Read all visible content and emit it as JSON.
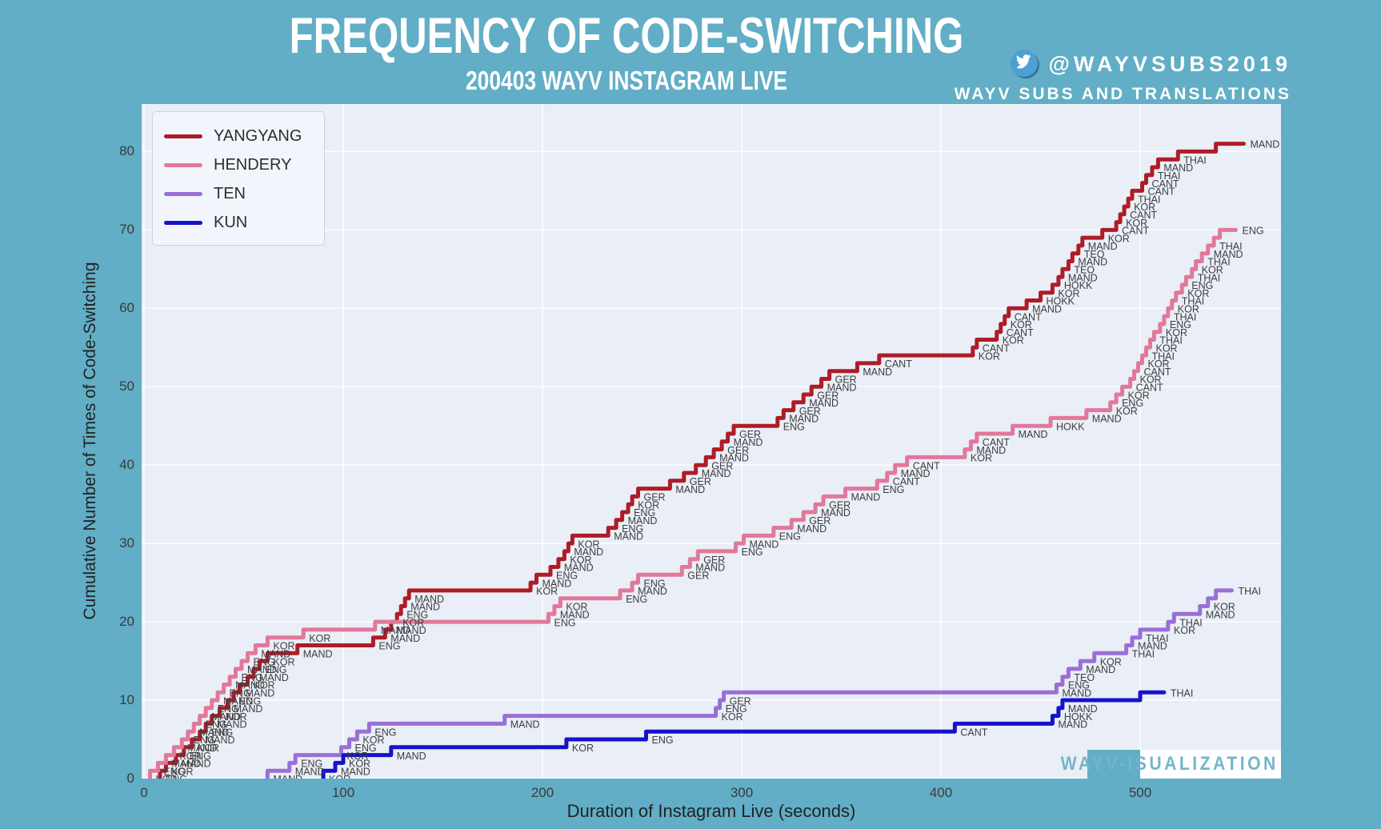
{
  "header": {
    "title": "FREQUENCY OF CODE-SWITCHING",
    "subtitle": "200403 WAYV INSTAGRAM LIVE",
    "twitter_handle": "@WAYVSUBS2019",
    "credit_line": "WAYV SUBS AND TRANSLATIONS"
  },
  "watermark": {
    "text": "WAYV-ISUALIZATION"
  },
  "axes": {
    "x_title": "Duration of Instagram Live (seconds)",
    "y_title": "Cumulative Number of Times of Code-Switching",
    "x_ticks": [
      0,
      100,
      200,
      300,
      400,
      500
    ],
    "y_ticks": [
      0,
      10,
      20,
      30,
      40,
      50,
      60,
      70,
      80
    ]
  },
  "colors": {
    "page_background": "#61aec6",
    "plot_background": "#e9eef7",
    "gridline": "#ffffff",
    "step_label_text": "#3d3d3d",
    "watermark_text": "#74b5ca"
  },
  "chart_data": {
    "type": "line",
    "subtype": "cumulative-step",
    "title": "Frequency of Code-Switching",
    "xlabel": "Duration of Instagram Live (seconds)",
    "ylabel": "Cumulative Number of Times of Code-Switching",
    "xlim": [
      0,
      570
    ],
    "ylim": [
      0,
      86
    ],
    "grid": true,
    "legend_position": "upper-left",
    "note": "Each event is [time_seconds, language_switched_to]; cumulative count after event i equals i+1",
    "series": [
      {
        "name": "YANGYANG",
        "color": "#ae1c27",
        "end_t": 552,
        "events": [
          [
            8,
            "ENG"
          ],
          [
            11,
            "KOR"
          ],
          [
            16,
            "MAND"
          ],
          [
            20,
            "ENG"
          ],
          [
            24,
            "KOR"
          ],
          [
            28,
            "MAND"
          ],
          [
            31,
            "ENG"
          ],
          [
            34,
            "MAND"
          ],
          [
            38,
            "KOR"
          ],
          [
            42,
            "MAND"
          ],
          [
            45,
            "ENG"
          ],
          [
            48,
            "MAND"
          ],
          [
            52,
            "KOR"
          ],
          [
            55,
            "MAND"
          ],
          [
            58,
            "ENG"
          ],
          [
            62,
            "KOR"
          ],
          [
            77,
            "MAND"
          ],
          [
            115,
            "ENG"
          ],
          [
            121,
            "MAND"
          ],
          [
            124,
            "MAND"
          ],
          [
            127,
            "KOR"
          ],
          [
            129,
            "ENG"
          ],
          [
            131,
            "MAND"
          ],
          [
            133,
            "MAND"
          ],
          [
            194,
            "KOR"
          ],
          [
            197,
            "MAND"
          ],
          [
            204,
            "ENG"
          ],
          [
            208,
            "MAND"
          ],
          [
            211,
            "KOR"
          ],
          [
            213,
            "MAND"
          ],
          [
            215,
            "KOR"
          ],
          [
            233,
            "MAND"
          ],
          [
            237,
            "ENG"
          ],
          [
            240,
            "MAND"
          ],
          [
            243,
            "ENG"
          ],
          [
            245,
            "KOR"
          ],
          [
            248,
            "GER"
          ],
          [
            264,
            "MAND"
          ],
          [
            271,
            "GER"
          ],
          [
            277,
            "MAND"
          ],
          [
            282,
            "GER"
          ],
          [
            286,
            "MAND"
          ],
          [
            290,
            "GER"
          ],
          [
            293,
            "MAND"
          ],
          [
            296,
            "GER"
          ],
          [
            318,
            "ENG"
          ],
          [
            321,
            "MAND"
          ],
          [
            326,
            "GER"
          ],
          [
            331,
            "MAND"
          ],
          [
            335,
            "GER"
          ],
          [
            340,
            "MAND"
          ],
          [
            344,
            "GER"
          ],
          [
            358,
            "MAND"
          ],
          [
            369,
            "CANT"
          ],
          [
            416,
            "KOR"
          ],
          [
            418,
            "CANT"
          ],
          [
            428,
            "KOR"
          ],
          [
            430,
            "CANT"
          ],
          [
            432,
            "KOR"
          ],
          [
            434,
            "CANT"
          ],
          [
            443,
            "MAND"
          ],
          [
            450,
            "HOKK"
          ],
          [
            456,
            "KOR"
          ],
          [
            459,
            "HOKK"
          ],
          [
            461,
            "MAND"
          ],
          [
            464,
            "TEO"
          ],
          [
            466,
            "MAND"
          ],
          [
            469,
            "TEO"
          ],
          [
            471,
            "MAND"
          ],
          [
            481,
            "KOR"
          ],
          [
            488,
            "CANT"
          ],
          [
            490,
            "KOR"
          ],
          [
            492,
            "CANT"
          ],
          [
            494,
            "KOR"
          ],
          [
            496,
            "THAI"
          ],
          [
            501,
            "CANT"
          ],
          [
            503,
            "CANT"
          ],
          [
            506,
            "THAI"
          ],
          [
            509,
            "MAND"
          ],
          [
            519,
            "THAI"
          ],
          [
            538,
            "MAND"
          ]
        ]
      },
      {
        "name": "HENDERY",
        "color": "#e27899",
        "end_t": 548,
        "events": [
          [
            3,
            "KOR"
          ],
          [
            7,
            "ENG"
          ],
          [
            11,
            "MAND"
          ],
          [
            15,
            "KOR"
          ],
          [
            19,
            "MAND"
          ],
          [
            22,
            "ENG"
          ],
          [
            25,
            "MAND"
          ],
          [
            28,
            "ENG"
          ],
          [
            31,
            "MAND"
          ],
          [
            34,
            "ENG"
          ],
          [
            37,
            "MAND"
          ],
          [
            40,
            "ENG"
          ],
          [
            43,
            "MAND"
          ],
          [
            46,
            "ENG"
          ],
          [
            49,
            "MAND"
          ],
          [
            52,
            "ENG"
          ],
          [
            56,
            "MAND"
          ],
          [
            62,
            "KOR"
          ],
          [
            80,
            "KOR"
          ],
          [
            116,
            "MAND"
          ],
          [
            203,
            "ENG"
          ],
          [
            206,
            "MAND"
          ],
          [
            209,
            "KOR"
          ],
          [
            239,
            "ENG"
          ],
          [
            245,
            "MAND"
          ],
          [
            248,
            "ENG"
          ],
          [
            270,
            "GER"
          ],
          [
            274,
            "MAND"
          ],
          [
            278,
            "GER"
          ],
          [
            297,
            "ENG"
          ],
          [
            301,
            "MAND"
          ],
          [
            316,
            "ENG"
          ],
          [
            325,
            "MAND"
          ],
          [
            331,
            "GER"
          ],
          [
            337,
            "MAND"
          ],
          [
            341,
            "GER"
          ],
          [
            352,
            "MAND"
          ],
          [
            368,
            "ENG"
          ],
          [
            373,
            "CANT"
          ],
          [
            377,
            "MAND"
          ],
          [
            383,
            "CANT"
          ],
          [
            412,
            "KOR"
          ],
          [
            415,
            "MAND"
          ],
          [
            418,
            "CANT"
          ],
          [
            436,
            "MAND"
          ],
          [
            455,
            "HOKK"
          ],
          [
            473,
            "MAND"
          ],
          [
            485,
            "KOR"
          ],
          [
            488,
            "ENG"
          ],
          [
            491,
            "KOR"
          ],
          [
            495,
            "CANT"
          ],
          [
            497,
            "KOR"
          ],
          [
            499,
            "CANT"
          ],
          [
            501,
            "KOR"
          ],
          [
            503,
            "THAI"
          ],
          [
            505,
            "KOR"
          ],
          [
            507,
            "THAI"
          ],
          [
            510,
            "KOR"
          ],
          [
            512,
            "ENG"
          ],
          [
            514,
            "THAI"
          ],
          [
            516,
            "KOR"
          ],
          [
            518,
            "THAI"
          ],
          [
            521,
            "KOR"
          ],
          [
            523,
            "ENG"
          ],
          [
            526,
            "THAI"
          ],
          [
            528,
            "KOR"
          ],
          [
            531,
            "THAI"
          ],
          [
            534,
            "MAND"
          ],
          [
            537,
            "THAI"
          ],
          [
            540,
            "ENG"
          ]
        ]
      },
      {
        "name": "TEN",
        "color": "#9a6fd6",
        "end_t": 546,
        "events": [
          [
            62,
            "MAND"
          ],
          [
            73,
            "MAND"
          ],
          [
            76,
            "ENG"
          ],
          [
            99,
            "KOR"
          ],
          [
            103,
            "ENG"
          ],
          [
            107,
            "KOR"
          ],
          [
            113,
            "ENG"
          ],
          [
            181,
            "MAND"
          ],
          [
            287,
            "KOR"
          ],
          [
            289,
            "ENG"
          ],
          [
            291,
            "GER"
          ],
          [
            458,
            "MAND"
          ],
          [
            461,
            "ENG"
          ],
          [
            464,
            "TEO"
          ],
          [
            470,
            "MAND"
          ],
          [
            477,
            "KOR"
          ],
          [
            493,
            "THAI"
          ],
          [
            496,
            "MAND"
          ],
          [
            500,
            "THAI"
          ],
          [
            514,
            "KOR"
          ],
          [
            517,
            "THAI"
          ],
          [
            530,
            "MAND"
          ],
          [
            534,
            "KOR"
          ],
          [
            538,
            "THAI"
          ]
        ]
      },
      {
        "name": "KUN",
        "color": "#1512cc",
        "end_t": 512,
        "events": [
          [
            90,
            "KOR"
          ],
          [
            96,
            "MAND"
          ],
          [
            100,
            "KOR"
          ],
          [
            124,
            "MAND"
          ],
          [
            212,
            "KOR"
          ],
          [
            252,
            "ENG"
          ],
          [
            407,
            "CANT"
          ],
          [
            456,
            "MAND"
          ],
          [
            459,
            "HOKK"
          ],
          [
            461,
            "MAND"
          ],
          [
            500,
            "THAI"
          ]
        ]
      }
    ]
  }
}
